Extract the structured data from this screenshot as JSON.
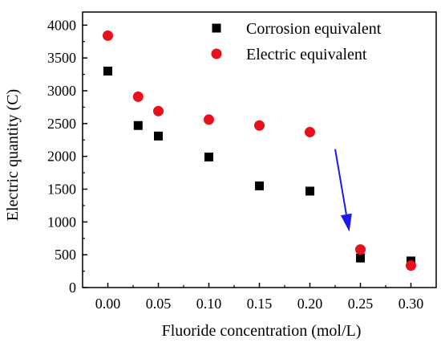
{
  "chart_data": {
    "type": "scatter",
    "xlabel": "Fluoride concentration (mol/L)",
    "ylabel": "Electric quantity (C)",
    "xlim": [
      -0.025,
      0.325
    ],
    "ylim": [
      0,
      4200
    ],
    "x_ticks": [
      0.0,
      0.05,
      0.1,
      0.15,
      0.2,
      0.25,
      0.3
    ],
    "x_tick_labels": [
      "0.00",
      "0.05",
      "0.10",
      "0.15",
      "0.20",
      "0.25",
      "0.30"
    ],
    "y_ticks": [
      0,
      500,
      1000,
      1500,
      2000,
      2500,
      3000,
      3500,
      4000
    ],
    "y_tick_labels": [
      "0",
      "500",
      "1000",
      "1500",
      "2000",
      "2500",
      "3000",
      "3500",
      "4000"
    ],
    "grid": false,
    "legend_position": "top-right",
    "series": [
      {
        "name": "Corrosion equivalent",
        "marker": "square",
        "color": "#000000",
        "x": [
          0.0,
          0.03,
          0.05,
          0.1,
          0.15,
          0.2,
          0.25,
          0.3
        ],
        "y": [
          3300,
          2470,
          2310,
          1990,
          1550,
          1470,
          450,
          405
        ]
      },
      {
        "name": "Electric equivalent",
        "marker": "circle",
        "color": "#e8101a",
        "x": [
          0.0,
          0.03,
          0.05,
          0.1,
          0.15,
          0.2,
          0.25,
          0.3
        ],
        "y": [
          3840,
          2910,
          2690,
          2560,
          2470,
          2370,
          580,
          335
        ]
      }
    ],
    "annotations": [
      {
        "type": "arrow",
        "color": "#1a1aee",
        "from": [
          0.225,
          2110
        ],
        "to": [
          0.239,
          850
        ]
      }
    ]
  }
}
